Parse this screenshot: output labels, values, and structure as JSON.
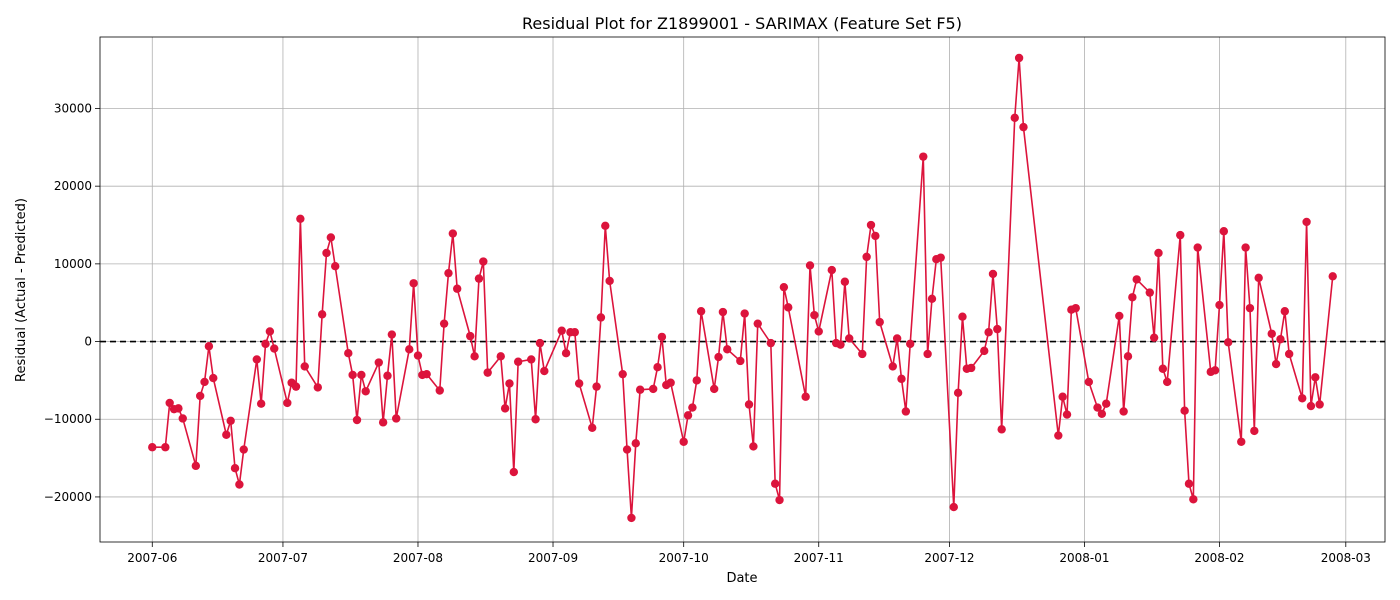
{
  "chart_data": {
    "type": "line",
    "title": "Residual Plot for Z1899001 - SARIMAX (Feature Set F5)",
    "xlabel": "Date",
    "ylabel": "Residual (Actual - Predicted)",
    "xlim": [
      "2007-05-20",
      "2008-03-10"
    ],
    "ylim": [
      -25800,
      39200
    ],
    "x_ticks": [
      "2007-06-01",
      "2007-07-01",
      "2007-08-01",
      "2007-09-01",
      "2007-10-01",
      "2007-11-01",
      "2007-12-01",
      "2008-01-01",
      "2008-02-01",
      "2008-03-01"
    ],
    "x_tick_labels": [
      "2007-06",
      "2007-07",
      "2007-08",
      "2007-09",
      "2007-10",
      "2007-11",
      "2007-12",
      "2008-01",
      "2008-02",
      "2008-03"
    ],
    "y_ticks": [
      -20000,
      -10000,
      0,
      10000,
      20000,
      30000
    ],
    "y_tick_labels": [
      "−20000",
      "−10000",
      "0",
      "10000",
      "20000",
      "30000"
    ],
    "grid": true,
    "zero_line": 0,
    "line_color": "#dc143c",
    "zero_line_color": "#000000",
    "series": [
      {
        "points": [
          [
            "2007-06-01",
            -13600
          ],
          [
            "2007-06-04",
            -13600
          ],
          [
            "2007-06-05",
            -7900
          ],
          [
            "2007-06-06",
            -8700
          ],
          [
            "2007-06-07",
            -8600
          ],
          [
            "2007-06-08",
            -9900
          ],
          [
            "2007-06-11",
            -16000
          ],
          [
            "2007-06-12",
            -7000
          ],
          [
            "2007-06-13",
            -5200
          ],
          [
            "2007-06-14",
            -600
          ],
          [
            "2007-06-15",
            -4700
          ],
          [
            "2007-06-18",
            -12000
          ],
          [
            "2007-06-19",
            -10200
          ],
          [
            "2007-06-20",
            -16300
          ],
          [
            "2007-06-21",
            -18400
          ],
          [
            "2007-06-22",
            -13900
          ],
          [
            "2007-06-25",
            -2300
          ],
          [
            "2007-06-26",
            -8000
          ],
          [
            "2007-06-27",
            -300
          ],
          [
            "2007-06-28",
            1300
          ],
          [
            "2007-06-29",
            -900
          ],
          [
            "2007-07-02",
            -7900
          ],
          [
            "2007-07-03",
            -5300
          ],
          [
            "2007-07-04",
            -5800
          ],
          [
            "2007-07-05",
            15800
          ],
          [
            "2007-07-06",
            -3200
          ],
          [
            "2007-07-09",
            -5900
          ],
          [
            "2007-07-10",
            3500
          ],
          [
            "2007-07-11",
            11400
          ],
          [
            "2007-07-12",
            13400
          ],
          [
            "2007-07-13",
            9700
          ],
          [
            "2007-07-16",
            -1500
          ],
          [
            "2007-07-17",
            -4300
          ],
          [
            "2007-07-18",
            -10100
          ],
          [
            "2007-07-19",
            -4300
          ],
          [
            "2007-07-20",
            -6400
          ],
          [
            "2007-07-23",
            -2700
          ],
          [
            "2007-07-24",
            -10400
          ],
          [
            "2007-07-25",
            -4400
          ],
          [
            "2007-07-26",
            900
          ],
          [
            "2007-07-27",
            -9900
          ],
          [
            "2007-07-30",
            -1000
          ],
          [
            "2007-07-31",
            7500
          ],
          [
            "2007-08-01",
            -1800
          ],
          [
            "2007-08-02",
            -4300
          ],
          [
            "2007-08-03",
            -4200
          ],
          [
            "2007-08-06",
            -6300
          ],
          [
            "2007-08-07",
            2300
          ],
          [
            "2007-08-08",
            8800
          ],
          [
            "2007-08-09",
            13900
          ],
          [
            "2007-08-10",
            6800
          ],
          [
            "2007-08-13",
            700
          ],
          [
            "2007-08-14",
            -1900
          ],
          [
            "2007-08-15",
            8100
          ],
          [
            "2007-08-16",
            10300
          ],
          [
            "2007-08-17",
            -4000
          ],
          [
            "2007-08-20",
            -1900
          ],
          [
            "2007-08-21",
            -8600
          ],
          [
            "2007-08-22",
            -5400
          ],
          [
            "2007-08-23",
            -16800
          ],
          [
            "2007-08-24",
            -2600
          ],
          [
            "2007-08-27",
            -2300
          ],
          [
            "2007-08-28",
            -10000
          ],
          [
            "2007-08-29",
            -200
          ],
          [
            "2007-08-30",
            -3800
          ],
          [
            "2007-09-03",
            1400
          ],
          [
            "2007-09-04",
            -1500
          ],
          [
            "2007-09-05",
            1200
          ],
          [
            "2007-09-06",
            1200
          ],
          [
            "2007-09-07",
            -5400
          ],
          [
            "2007-09-10",
            -11100
          ],
          [
            "2007-09-11",
            -5800
          ],
          [
            "2007-09-12",
            3100
          ],
          [
            "2007-09-13",
            14900
          ],
          [
            "2007-09-14",
            7800
          ],
          [
            "2007-09-17",
            -4200
          ],
          [
            "2007-09-18",
            -13900
          ],
          [
            "2007-09-19",
            -22700
          ],
          [
            "2007-09-20",
            -13100
          ],
          [
            "2007-09-21",
            -6200
          ],
          [
            "2007-09-24",
            -6100
          ],
          [
            "2007-09-25",
            -3300
          ],
          [
            "2007-09-26",
            600
          ],
          [
            "2007-09-27",
            -5600
          ],
          [
            "2007-09-28",
            -5300
          ],
          [
            "2007-10-01",
            -12900
          ],
          [
            "2007-10-02",
            -9500
          ],
          [
            "2007-10-03",
            -8500
          ],
          [
            "2007-10-04",
            -5000
          ],
          [
            "2007-10-05",
            3900
          ],
          [
            "2007-10-08",
            -6100
          ],
          [
            "2007-10-09",
            -2000
          ],
          [
            "2007-10-10",
            3800
          ],
          [
            "2007-10-11",
            -1000
          ],
          [
            "2007-10-14",
            -2500
          ],
          [
            "2007-10-15",
            3600
          ],
          [
            "2007-10-16",
            -8100
          ],
          [
            "2007-10-17",
            -13500
          ],
          [
            "2007-10-18",
            2300
          ],
          [
            "2007-10-21",
            -200
          ],
          [
            "2007-10-22",
            -18300
          ],
          [
            "2007-10-23",
            -20400
          ],
          [
            "2007-10-24",
            7000
          ],
          [
            "2007-10-25",
            4400
          ],
          [
            "2007-10-29",
            -7100
          ],
          [
            "2007-10-30",
            9800
          ],
          [
            "2007-10-31",
            3400
          ],
          [
            "2007-11-01",
            1300
          ],
          [
            "2007-11-04",
            9200
          ],
          [
            "2007-11-05",
            -200
          ],
          [
            "2007-11-06",
            -400
          ],
          [
            "2007-11-07",
            7700
          ],
          [
            "2007-11-08",
            400
          ],
          [
            "2007-11-11",
            -1600
          ],
          [
            "2007-11-12",
            10900
          ],
          [
            "2007-11-13",
            15000
          ],
          [
            "2007-11-14",
            13600
          ],
          [
            "2007-11-15",
            2500
          ],
          [
            "2007-11-18",
            -3200
          ],
          [
            "2007-11-19",
            400
          ],
          [
            "2007-11-20",
            -4800
          ],
          [
            "2007-11-21",
            -9000
          ],
          [
            "2007-11-22",
            -300
          ],
          [
            "2007-11-25",
            23800
          ],
          [
            "2007-11-26",
            -1600
          ],
          [
            "2007-11-27",
            5500
          ],
          [
            "2007-11-28",
            10600
          ],
          [
            "2007-11-29",
            10800
          ],
          [
            "2007-12-02",
            -21300
          ],
          [
            "2007-12-03",
            -6600
          ],
          [
            "2007-12-04",
            3200
          ],
          [
            "2007-12-05",
            -3500
          ],
          [
            "2007-12-06",
            -3400
          ],
          [
            "2007-12-09",
            -1200
          ],
          [
            "2007-12-10",
            1200
          ],
          [
            "2007-12-11",
            8700
          ],
          [
            "2007-12-12",
            1600
          ],
          [
            "2007-12-13",
            -11300
          ],
          [
            "2007-12-16",
            28800
          ],
          [
            "2007-12-17",
            36500
          ],
          [
            "2007-12-18",
            27600
          ],
          [
            "2007-12-26",
            -12100
          ],
          [
            "2007-12-27",
            -7100
          ],
          [
            "2007-12-28",
            -9400
          ],
          [
            "2007-12-29",
            4100
          ],
          [
            "2007-12-30",
            4300
          ],
          [
            "2008-01-02",
            -5200
          ],
          [
            "2008-01-04",
            -8500
          ],
          [
            "2008-01-05",
            -9300
          ],
          [
            "2008-01-06",
            -8000
          ],
          [
            "2008-01-09",
            3300
          ],
          [
            "2008-01-10",
            -9000
          ],
          [
            "2008-01-11",
            -1900
          ],
          [
            "2008-01-12",
            5700
          ],
          [
            "2008-01-13",
            8000
          ],
          [
            "2008-01-16",
            6300
          ],
          [
            "2008-01-17",
            500
          ],
          [
            "2008-01-18",
            11400
          ],
          [
            "2008-01-19",
            -3500
          ],
          [
            "2008-01-20",
            -5200
          ],
          [
            "2008-01-23",
            13700
          ],
          [
            "2008-01-24",
            -8900
          ],
          [
            "2008-01-25",
            -18300
          ],
          [
            "2008-01-26",
            -20300
          ],
          [
            "2008-01-27",
            12100
          ],
          [
            "2008-01-30",
            -3900
          ],
          [
            "2008-01-31",
            -3700
          ],
          [
            "2008-02-01",
            4700
          ],
          [
            "2008-02-02",
            14200
          ],
          [
            "2008-02-03",
            -100
          ],
          [
            "2008-02-06",
            -12900
          ],
          [
            "2008-02-07",
            12100
          ],
          [
            "2008-02-08",
            4300
          ],
          [
            "2008-02-09",
            -11500
          ],
          [
            "2008-02-10",
            8200
          ],
          [
            "2008-02-13",
            1000
          ],
          [
            "2008-02-14",
            -2900
          ],
          [
            "2008-02-15",
            300
          ],
          [
            "2008-02-16",
            3900
          ],
          [
            "2008-02-17",
            -1600
          ],
          [
            "2008-02-20",
            -7300
          ],
          [
            "2008-02-21",
            15400
          ],
          [
            "2008-02-22",
            -8300
          ],
          [
            "2008-02-23",
            -4600
          ],
          [
            "2008-02-24",
            -8100
          ],
          [
            "2008-02-27",
            8400
          ]
        ]
      }
    ]
  }
}
